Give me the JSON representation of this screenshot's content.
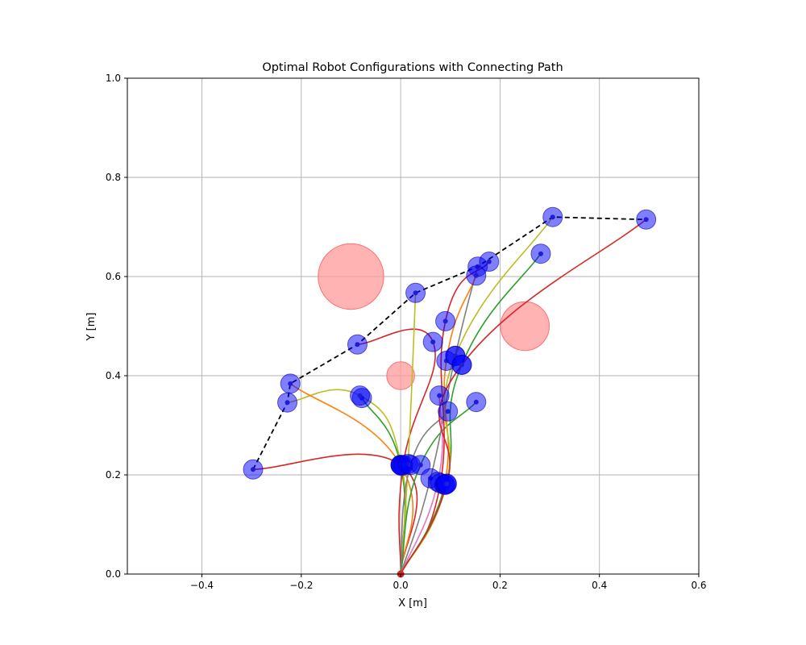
{
  "chart_data": {
    "type": "scatter",
    "title": "Optimal Robot Configurations with Connecting Path",
    "xlabel": "X [m]",
    "ylabel": "Y [m]",
    "xlim": [
      -0.55,
      0.6
    ],
    "ylim": [
      0.0,
      1.0
    ],
    "grid": true,
    "legend": "none",
    "xticks": [
      -0.4,
      -0.2,
      0.0,
      0.2,
      0.4,
      0.6
    ],
    "yticks": [
      0.0,
      0.2,
      0.4,
      0.6,
      0.8,
      1.0
    ],
    "xtick_labels": [
      "−0.4",
      "−0.2",
      "0.0",
      "0.2",
      "0.4",
      "0.6"
    ],
    "ytick_labels": [
      "0.0",
      "0.2",
      "0.4",
      "0.6",
      "0.8",
      "1.0"
    ],
    "base": [
      0.0,
      0.0
    ],
    "obstacles": [
      {
        "center": [
          -0.1,
          0.6
        ],
        "radius": 0.066
      },
      {
        "center": [
          0.25,
          0.5
        ],
        "radius": 0.049
      },
      {
        "center": [
          0.0,
          0.4
        ],
        "radius": 0.028
      }
    ],
    "connecting_path": [
      [
        -0.297,
        0.211
      ],
      [
        -0.228,
        0.346
      ],
      [
        -0.222,
        0.384
      ],
      [
        -0.087,
        0.463
      ],
      [
        0.03,
        0.567
      ],
      [
        0.155,
        0.62
      ],
      [
        0.306,
        0.72
      ],
      [
        0.494,
        0.715
      ]
    ],
    "configurations": [
      {
        "color": "#d62728",
        "points": [
          [
            0.0,
            0.0
          ],
          [
            0.0,
            0.22
          ],
          [
            -0.297,
            0.211
          ]
        ]
      },
      {
        "color": "#2ca02c",
        "points": [
          [
            0.0,
            0.0
          ],
          [
            0.0,
            0.22
          ],
          [
            -0.078,
            0.355
          ]
        ]
      },
      {
        "color": "#bcbd22",
        "points": [
          [
            0.0,
            0.0
          ],
          [
            0.002,
            0.218
          ],
          [
            -0.082,
            0.36
          ],
          [
            -0.228,
            0.346
          ]
        ]
      },
      {
        "color": "#ff7f0e",
        "points": [
          [
            0.0,
            0.0
          ],
          [
            0.0,
            0.22
          ],
          [
            -0.222,
            0.384
          ]
        ]
      },
      {
        "color": "#d62728",
        "points": [
          [
            0.0,
            0.0
          ],
          [
            0.005,
            0.22
          ],
          [
            0.065,
            0.468
          ],
          [
            -0.087,
            0.463
          ]
        ]
      },
      {
        "color": "#bcbd22",
        "points": [
          [
            0.0,
            0.0
          ],
          [
            0.015,
            0.222
          ],
          [
            0.03,
            0.567
          ]
        ]
      },
      {
        "color": "#7f7f7f",
        "points": [
          [
            0.0,
            0.0
          ],
          [
            0.02,
            0.22
          ],
          [
            0.095,
            0.328
          ]
        ]
      },
      {
        "color": "#2ca02c",
        "points": [
          [
            0.0,
            0.0
          ],
          [
            0.04,
            0.22
          ],
          [
            0.152,
            0.347
          ]
        ]
      },
      {
        "color": "#7f7f7f",
        "points": [
          [
            0.0,
            0.0
          ],
          [
            0.06,
            0.193
          ],
          [
            0.11,
            0.44
          ],
          [
            0.155,
            0.62
          ]
        ]
      },
      {
        "color": "#e377c2",
        "points": [
          [
            0.0,
            0.0
          ],
          [
            0.075,
            0.186
          ],
          [
            0.078,
            0.36
          ]
        ]
      },
      {
        "color": "#d62728",
        "points": [
          [
            0.0,
            0.0
          ],
          [
            0.08,
            0.183
          ],
          [
            0.09,
            0.51
          ],
          [
            0.178,
            0.63
          ]
        ]
      },
      {
        "color": "#ff7f0e",
        "points": [
          [
            0.0,
            0.0
          ],
          [
            0.088,
            0.18
          ],
          [
            0.092,
            0.43
          ],
          [
            0.152,
            0.602
          ]
        ]
      },
      {
        "color": "#2ca02c",
        "points": [
          [
            0.0,
            0.0
          ],
          [
            0.09,
            0.18
          ],
          [
            0.123,
            0.422
          ],
          [
            0.282,
            0.646
          ]
        ]
      },
      {
        "color": "#bcbd22",
        "points": [
          [
            0.0,
            0.0
          ],
          [
            0.092,
            0.182
          ],
          [
            0.11,
            0.44
          ],
          [
            0.306,
            0.72
          ]
        ]
      },
      {
        "color": "#d62728",
        "points": [
          [
            0.0,
            0.0
          ],
          [
            0.093,
            0.182
          ],
          [
            0.123,
            0.422
          ],
          [
            0.494,
            0.715
          ]
        ]
      }
    ],
    "colors": {
      "joint_fill": "#0000ff",
      "joint_core": "#1f1fd0",
      "obstacle_fill": "#ff9999",
      "obstacle_edge": "#ff6f6f",
      "path": "#000000",
      "base": "#d62728"
    }
  }
}
